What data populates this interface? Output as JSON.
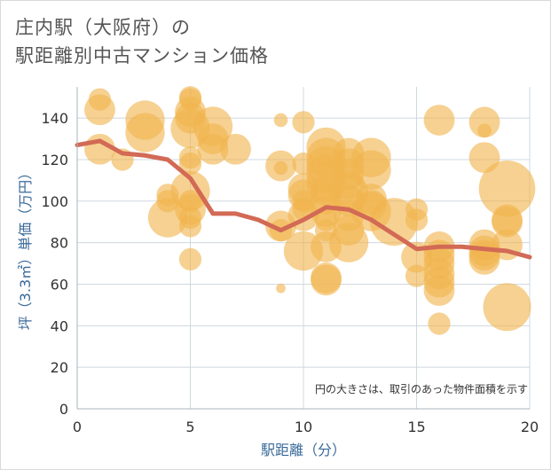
{
  "title_line1": "庄内駅（大阪府）の",
  "title_line2": "駅距離別中古マンション価格",
  "chart_data": {
    "type": "scatter",
    "xlabel": "駅距離（分）",
    "ylabel": "坪（3.3㎡）単価（万円）",
    "xlim": [
      0,
      20
    ],
    "ylim": [
      0,
      155
    ],
    "xticks": [
      0,
      5,
      10,
      15,
      20
    ],
    "yticks": [
      0,
      20,
      40,
      60,
      80,
      100,
      120,
      140
    ],
    "grid": true,
    "note": "円の大きさは、取引のあった物件面積を示す",
    "colors": {
      "bubble": "#f0b54f",
      "line": "#d26a55",
      "grid": "#cfd8e0",
      "plot_bg": "#ffffff"
    },
    "points": [
      {
        "x": 1,
        "y": 149,
        "s": 2
      },
      {
        "x": 1,
        "y": 144,
        "s": 3
      },
      {
        "x": 1,
        "y": 125,
        "s": 3
      },
      {
        "x": 2,
        "y": 120,
        "s": 2
      },
      {
        "x": 3,
        "y": 139,
        "s": 4
      },
      {
        "x": 3,
        "y": 133,
        "s": 4
      },
      {
        "x": 4,
        "y": 103,
        "s": 2
      },
      {
        "x": 4,
        "y": 100,
        "s": 2
      },
      {
        "x": 4,
        "y": 92,
        "s": 4
      },
      {
        "x": 5,
        "y": 150,
        "s": 2
      },
      {
        "x": 5,
        "y": 149,
        "s": 2
      },
      {
        "x": 5,
        "y": 143,
        "s": 3
      },
      {
        "x": 5,
        "y": 140,
        "s": 3
      },
      {
        "x": 5,
        "y": 135,
        "s": 4
      },
      {
        "x": 5,
        "y": 121,
        "s": 2
      },
      {
        "x": 5,
        "y": 118,
        "s": 2
      },
      {
        "x": 5,
        "y": 105,
        "s": 4
      },
      {
        "x": 5,
        "y": 100,
        "s": 2
      },
      {
        "x": 5,
        "y": 96,
        "s": 3
      },
      {
        "x": 5,
        "y": 92,
        "s": 2
      },
      {
        "x": 5,
        "y": 88,
        "s": 2
      },
      {
        "x": 5,
        "y": 72,
        "s": 2
      },
      {
        "x": 6,
        "y": 136,
        "s": 4
      },
      {
        "x": 6,
        "y": 130,
        "s": 3
      },
      {
        "x": 6,
        "y": 125,
        "s": 3
      },
      {
        "x": 7,
        "y": 125,
        "s": 3
      },
      {
        "x": 9,
        "y": 139,
        "s": 1
      },
      {
        "x": 9,
        "y": 117,
        "s": 3
      },
      {
        "x": 9,
        "y": 116,
        "s": 1
      },
      {
        "x": 9,
        "y": 88,
        "s": 3
      },
      {
        "x": 9,
        "y": 86,
        "s": 2
      },
      {
        "x": 9,
        "y": 58,
        "s": 0.5
      },
      {
        "x": 10,
        "y": 138,
        "s": 2
      },
      {
        "x": 10,
        "y": 118,
        "s": 2
      },
      {
        "x": 10,
        "y": 106,
        "s": 3
      },
      {
        "x": 10,
        "y": 103,
        "s": 3
      },
      {
        "x": 10,
        "y": 100,
        "s": 2
      },
      {
        "x": 10,
        "y": 96,
        "s": 2
      },
      {
        "x": 10,
        "y": 93,
        "s": 3
      },
      {
        "x": 10,
        "y": 76,
        "s": 4
      },
      {
        "x": 11,
        "y": 126,
        "s": 4
      },
      {
        "x": 11,
        "y": 121,
        "s": 4
      },
      {
        "x": 11,
        "y": 117,
        "s": 4
      },
      {
        "x": 11,
        "y": 113,
        "s": 4
      },
      {
        "x": 11,
        "y": 109,
        "s": 4
      },
      {
        "x": 11,
        "y": 105,
        "s": 3
      },
      {
        "x": 11,
        "y": 101,
        "s": 3
      },
      {
        "x": 11,
        "y": 95,
        "s": 3
      },
      {
        "x": 11,
        "y": 91,
        "s": 2
      },
      {
        "x": 11,
        "y": 86,
        "s": 2
      },
      {
        "x": 11,
        "y": 78,
        "s": 3
      },
      {
        "x": 11,
        "y": 63,
        "s": 3
      },
      {
        "x": 11,
        "y": 62,
        "s": 3
      },
      {
        "x": 12,
        "y": 123,
        "s": 3
      },
      {
        "x": 12,
        "y": 118,
        "s": 3
      },
      {
        "x": 12,
        "y": 113,
        "s": 3
      },
      {
        "x": 12,
        "y": 108,
        "s": 3
      },
      {
        "x": 12,
        "y": 104,
        "s": 4
      },
      {
        "x": 12,
        "y": 100,
        "s": 3
      },
      {
        "x": 12,
        "y": 93,
        "s": 3
      },
      {
        "x": 12,
        "y": 86,
        "s": 3
      },
      {
        "x": 12,
        "y": 80,
        "s": 4
      },
      {
        "x": 13,
        "y": 121,
        "s": 4
      },
      {
        "x": 13,
        "y": 115,
        "s": 4
      },
      {
        "x": 13,
        "y": 101,
        "s": 3
      },
      {
        "x": 13,
        "y": 98,
        "s": 3
      },
      {
        "x": 13,
        "y": 95,
        "s": 4
      },
      {
        "x": 14,
        "y": 90,
        "s": 5
      },
      {
        "x": 15,
        "y": 96,
        "s": 2
      },
      {
        "x": 15,
        "y": 91,
        "s": 2
      },
      {
        "x": 15,
        "y": 73,
        "s": 3
      },
      {
        "x": 15,
        "y": 64,
        "s": 2
      },
      {
        "x": 16,
        "y": 139,
        "s": 3
      },
      {
        "x": 16,
        "y": 78,
        "s": 3
      },
      {
        "x": 16,
        "y": 74,
        "s": 3
      },
      {
        "x": 16,
        "y": 70,
        "s": 3
      },
      {
        "x": 16,
        "y": 65,
        "s": 3
      },
      {
        "x": 16,
        "y": 61,
        "s": 3
      },
      {
        "x": 16,
        "y": 57,
        "s": 3
      },
      {
        "x": 16,
        "y": 41,
        "s": 2
      },
      {
        "x": 18,
        "y": 138,
        "s": 3
      },
      {
        "x": 18,
        "y": 134,
        "s": 1
      },
      {
        "x": 18,
        "y": 121,
        "s": 3
      },
      {
        "x": 18,
        "y": 79,
        "s": 3
      },
      {
        "x": 18,
        "y": 76,
        "s": 3
      },
      {
        "x": 18,
        "y": 74,
        "s": 3
      },
      {
        "x": 18,
        "y": 72,
        "s": 3
      },
      {
        "x": 19,
        "y": 106,
        "s": 6
      },
      {
        "x": 19,
        "y": 91,
        "s": 3
      },
      {
        "x": 19,
        "y": 90,
        "s": 3
      },
      {
        "x": 19,
        "y": 79,
        "s": 3
      },
      {
        "x": 19,
        "y": 49,
        "s": 5
      }
    ],
    "line": {
      "x": [
        0,
        1,
        2,
        3,
        4,
        5,
        6,
        7,
        8,
        9,
        10,
        11,
        12,
        13,
        14,
        15,
        16,
        17,
        18,
        19,
        20
      ],
      "y": [
        127,
        129,
        123,
        122,
        120,
        111,
        94,
        94,
        91,
        86,
        91,
        97,
        96,
        91,
        84,
        77,
        78,
        78,
        77,
        76,
        73
      ]
    }
  }
}
